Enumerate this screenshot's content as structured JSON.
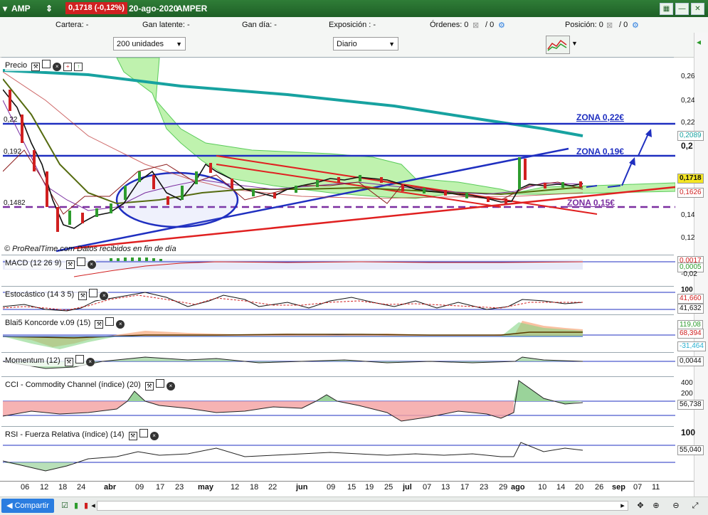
{
  "titlebar": {
    "ticker": "AMP",
    "price_change": "0,1718 (-0,12%)",
    "date": "20-ago-2020",
    "name": "AMPER"
  },
  "infobar": {
    "cartera": "Cartera: -",
    "gan_latente": "Gan latente: -",
    "gan_dia": "Gan día: -",
    "exposicion": "Exposición : -",
    "ordenes": "Órdenes: 0",
    "ordenes2": "/ 0",
    "posicion": "Posición: 0",
    "posicion2": "/ 0"
  },
  "toolbar": {
    "units": "200 unidades",
    "period": "Diario"
  },
  "price_panel": {
    "title": "Precio",
    "credit": "© ProRealTime.com Datos recibidos en fin de día",
    "zone_022": "ZONA 0,22€",
    "zone_019": "ZONA 0,19€",
    "zone_015": "ZONA 0,15€",
    "left_022": "0,22",
    "left_0192": "0,192",
    "left_01482": "0,1482",
    "axis": [
      "0,26",
      "0,24",
      "0,22",
      "0,2",
      "0,14",
      "0,12"
    ],
    "box_2089": "0,2089",
    "box_1718": "0,1718",
    "box_1626": "0,1626",
    "colors": {
      "up": "#2e9c2e",
      "down": "#d02020",
      "support": "#1f2fc0",
      "trend": "#e02020",
      "mid": "#7b2ea0"
    }
  },
  "macd": {
    "title": "MACD (12 26 9)",
    "v1": "0,0017",
    "v2": "0,0005",
    "v3": "-0,02"
  },
  "stoch": {
    "title": "Estocástico (14 3 5)",
    "top": "100",
    "v1": "41,660",
    "v2": "41,632"
  },
  "blai5": {
    "title": "Blai5 Koncorde v.09 (15)",
    "v1": "119,08",
    "v2": "68,394",
    "v3": "-31,464"
  },
  "momentum": {
    "title": "Momentum (12)",
    "v1": "0,0044"
  },
  "cci": {
    "title": "CCI - Commodity Channel (índice) (20)",
    "a1": "400",
    "a2": "200",
    "v1": "56,738"
  },
  "rsi": {
    "title": "RSI - Fuerza Relativa (índice) (14)",
    "top": "100",
    "v1": "55,040"
  },
  "xaxis": [
    {
      "t": "06",
      "b": false
    },
    {
      "t": "12",
      "b": false
    },
    {
      "t": "18",
      "b": false
    },
    {
      "t": "24",
      "b": false
    },
    {
      "t": "abr",
      "b": true
    },
    {
      "t": "09",
      "b": false
    },
    {
      "t": "17",
      "b": false
    },
    {
      "t": "23",
      "b": false
    },
    {
      "t": "may",
      "b": true
    },
    {
      "t": "12",
      "b": false
    },
    {
      "t": "18",
      "b": false
    },
    {
      "t": "22",
      "b": false
    },
    {
      "t": "jun",
      "b": true
    },
    {
      "t": "09",
      "b": false
    },
    {
      "t": "15",
      "b": false
    },
    {
      "t": "19",
      "b": false
    },
    {
      "t": "25",
      "b": false
    },
    {
      "t": "jul",
      "b": true
    },
    {
      "t": "07",
      "b": false
    },
    {
      "t": "13",
      "b": false
    },
    {
      "t": "17",
      "b": false
    },
    {
      "t": "23",
      "b": false
    },
    {
      "t": "29",
      "b": false
    },
    {
      "t": "ago",
      "b": true
    },
    {
      "t": "10",
      "b": false
    },
    {
      "t": "14",
      "b": false
    },
    {
      "t": "20",
      "b": false
    },
    {
      "t": "26",
      "b": false
    },
    {
      "t": "sep",
      "b": true
    },
    {
      "t": "07",
      "b": false
    },
    {
      "t": "11",
      "b": false
    }
  ],
  "bottombar": {
    "share": "Compartir"
  }
}
